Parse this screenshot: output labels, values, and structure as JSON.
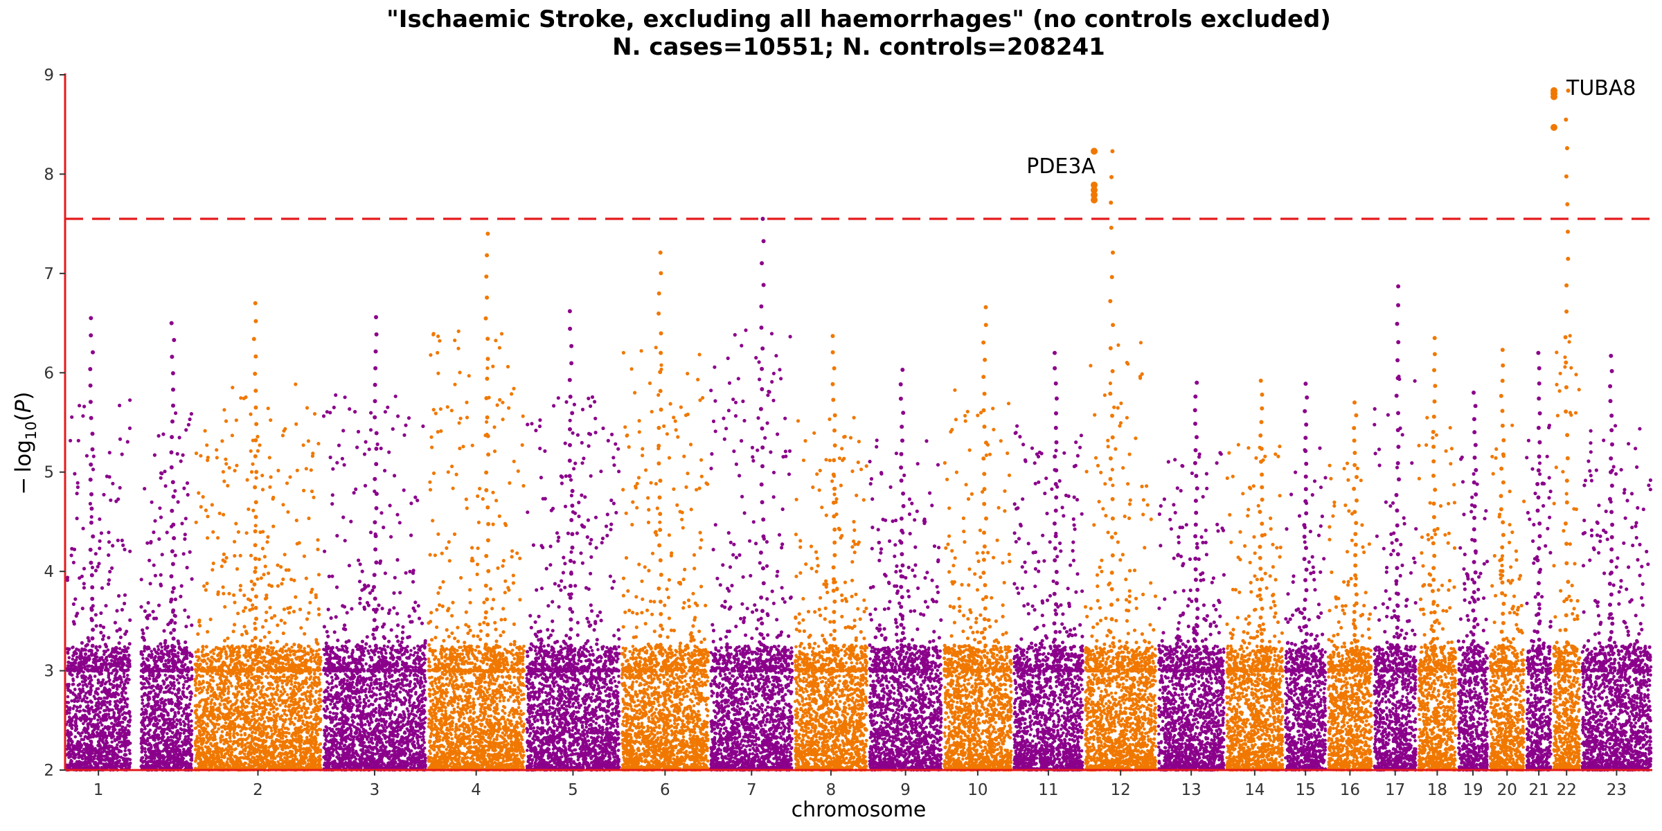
{
  "chart_data": {
    "type": "scatter",
    "subtype": "manhattan",
    "title": "\"Ischaemic Stroke, excluding all haemorrhages\" (no controls excluded)",
    "subtitle": "N. cases=10551; N. controls=208241",
    "xlabel": "chromosome",
    "ylabel": "−log10(P)",
    "ylim": [
      2,
      9
    ],
    "yticks": [
      2,
      3,
      4,
      5,
      6,
      7,
      8,
      9
    ],
    "grid": false,
    "significance_threshold": 7.55,
    "threshold_color": "#e41a1c",
    "axis_color": "#e41a1c",
    "colors": {
      "odd": "#8b008b",
      "even": "#f07800"
    },
    "chromosomes": [
      {
        "label": "1",
        "start": 0.0,
        "end": 0.042,
        "peak": 6.55,
        "color": "odd"
      },
      {
        "label": "",
        "start": 0.047,
        "end": 0.081,
        "peak": 6.5,
        "color": "odd"
      },
      {
        "label": "2",
        "start": 0.081,
        "end": 0.162,
        "peak": 6.7,
        "color": "even"
      },
      {
        "label": "3",
        "start": 0.162,
        "end": 0.228,
        "peak": 6.56,
        "color": "odd"
      },
      {
        "label": "4",
        "start": 0.228,
        "end": 0.29,
        "peak": 7.4,
        "color": "even"
      },
      {
        "label": "5",
        "start": 0.29,
        "end": 0.35,
        "peak": 6.62,
        "color": "odd"
      },
      {
        "label": "6",
        "start": 0.35,
        "end": 0.406,
        "peak": 7.21,
        "color": "even"
      },
      {
        "label": "7",
        "start": 0.406,
        "end": 0.459,
        "peak": 7.55,
        "color": "odd"
      },
      {
        "label": "8",
        "start": 0.459,
        "end": 0.506,
        "peak": 6.37,
        "color": "even"
      },
      {
        "label": "9",
        "start": 0.506,
        "end": 0.553,
        "peak": 6.03,
        "color": "odd"
      },
      {
        "label": "10",
        "start": 0.553,
        "end": 0.597,
        "peak": 6.66,
        "color": "even"
      },
      {
        "label": "11",
        "start": 0.597,
        "end": 0.642,
        "peak": 6.2,
        "color": "odd"
      },
      {
        "label": "12",
        "start": 0.642,
        "end": 0.688,
        "peak": 8.23,
        "color": "even"
      },
      {
        "label": "13",
        "start": 0.688,
        "end": 0.731,
        "peak": 5.9,
        "color": "odd"
      },
      {
        "label": "14",
        "start": 0.731,
        "end": 0.768,
        "peak": 5.92,
        "color": "even"
      },
      {
        "label": "15",
        "start": 0.768,
        "end": 0.795,
        "peak": 5.89,
        "color": "odd"
      },
      {
        "label": "16",
        "start": 0.795,
        "end": 0.824,
        "peak": 5.7,
        "color": "even"
      },
      {
        "label": "17",
        "start": 0.824,
        "end": 0.852,
        "peak": 6.87,
        "color": "odd"
      },
      {
        "label": "18",
        "start": 0.852,
        "end": 0.877,
        "peak": 6.35,
        "color": "even"
      },
      {
        "label": "19",
        "start": 0.877,
        "end": 0.897,
        "peak": 5.8,
        "color": "odd"
      },
      {
        "label": "20",
        "start": 0.897,
        "end": 0.92,
        "peak": 6.23,
        "color": "even"
      },
      {
        "label": "21",
        "start": 0.92,
        "end": 0.937,
        "peak": 6.2,
        "color": "odd"
      },
      {
        "label": "22",
        "start": 0.937,
        "end": 0.955,
        "peak": 8.84,
        "color": "even"
      },
      {
        "label": "23",
        "start": 0.955,
        "end": 1.0,
        "peak": 6.17,
        "color": "odd"
      }
    ],
    "hits": [
      {
        "label": "PDE3A",
        "chromosome": "12",
        "values": [
          8.23,
          7.89,
          7.84,
          7.79,
          7.74
        ]
      },
      {
        "label": "TUBA8",
        "chromosome": "22",
        "values": [
          8.84,
          8.81,
          8.78,
          8.47
        ]
      }
    ]
  }
}
